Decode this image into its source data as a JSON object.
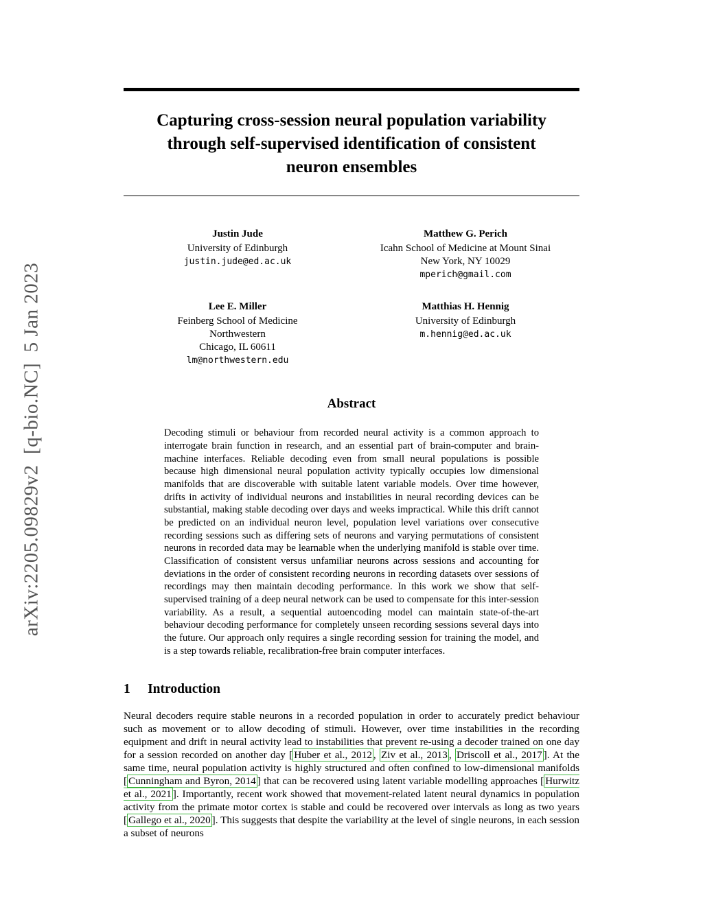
{
  "colors": {
    "citation_box": "#3cb53c",
    "watermark": "#555555"
  },
  "arxiv_label": "arXiv:2205.09829v2  [q-bio.NC]  5 Jan 2023",
  "title": "Capturing cross-session neural population variability\nthrough self-supervised identification of consistent\nneuron ensembles",
  "authors": [
    {
      "name": "Justin Jude",
      "lines": [
        "University of Edinburgh"
      ],
      "email": "justin.jude@ed.ac.uk"
    },
    {
      "name": "Matthew G. Perich",
      "lines": [
        "Icahn School of Medicine at Mount Sinai",
        "New York, NY 10029"
      ],
      "email": "mperich@gmail.com"
    },
    {
      "name": "Lee E. Miller",
      "lines": [
        "Feinberg School of Medicine",
        "Northwestern",
        "Chicago, IL 60611"
      ],
      "email": "lm@northwestern.edu"
    },
    {
      "name": "Matthias H. Hennig",
      "lines": [
        "University of Edinburgh"
      ],
      "email": "m.hennig@ed.ac.uk"
    }
  ],
  "abstract": {
    "heading": "Abstract",
    "text": "Decoding stimuli or behaviour from recorded neural activity is a common approach to interrogate brain function in research, and an essential part of brain-computer and brain-machine interfaces. Reliable decoding even from small neural populations is possible because high dimensional neural population activity typically occupies low dimensional manifolds that are discoverable with suitable latent variable models. Over time however, drifts in activity of individual neurons and instabilities in neural recording devices can be substantial, making stable decoding over days and weeks impractical. While this drift cannot be predicted on an individual neuron level, population level variations over consecutive recording sessions such as differing sets of neurons and varying permutations of consistent neurons in recorded data may be learnable when the underlying manifold is stable over time. Classification of consistent versus unfamiliar neurons across sessions and accounting for deviations in the order of consistent recording neurons in recording datasets over sessions of recordings may then maintain decoding performance. In this work we show that self-supervised training of a deep neural network can be used to compensate for this inter-session variability. As a result, a sequential autoencoding model can maintain state-of-the-art behaviour decoding performance for completely unseen recording sessions several days into the future. Our approach only requires a single recording session for training the model, and is a step towards reliable, recalibration-free brain computer interfaces."
  },
  "section1": {
    "number": "1",
    "title": "Introduction"
  },
  "intro_segments": [
    {
      "text": "Neural decoders require stable neurons in a recorded population in order to accurately predict behaviour such as movement or to allow decoding of stimuli. However, over time instabilities in the recording equipment and drift in neural activity lead to instabilities that prevent re-using a decoder trained on one day for a session recorded on another day [",
      "cite": false
    },
    {
      "text": "Huber et al., 2012",
      "cite": true
    },
    {
      "text": ", ",
      "cite": false
    },
    {
      "text": "Ziv et al., 2013",
      "cite": true
    },
    {
      "text": ", ",
      "cite": false
    },
    {
      "text": "Driscoll et al., 2017",
      "cite": true
    },
    {
      "text": "]. At the same time, neural population activity is highly structured and often confined to low-dimensional manifolds [",
      "cite": false
    },
    {
      "text": "Cunningham and Byron, 2014",
      "cite": true
    },
    {
      "text": "] that can be recovered using latent variable modelling approaches [",
      "cite": false
    },
    {
      "text": "Hurwitz et al., 2021",
      "cite": true
    },
    {
      "text": "]. Importantly, recent work showed that movement-related latent neural dynamics in population activity from the primate motor cortex is stable and could be recovered over intervals as long as two years [",
      "cite": false
    },
    {
      "text": "Gallego et al., 2020",
      "cite": true
    },
    {
      "text": "]. This suggests that despite the variability at the level of single neurons, in each session a subset of neurons",
      "cite": false
    }
  ]
}
